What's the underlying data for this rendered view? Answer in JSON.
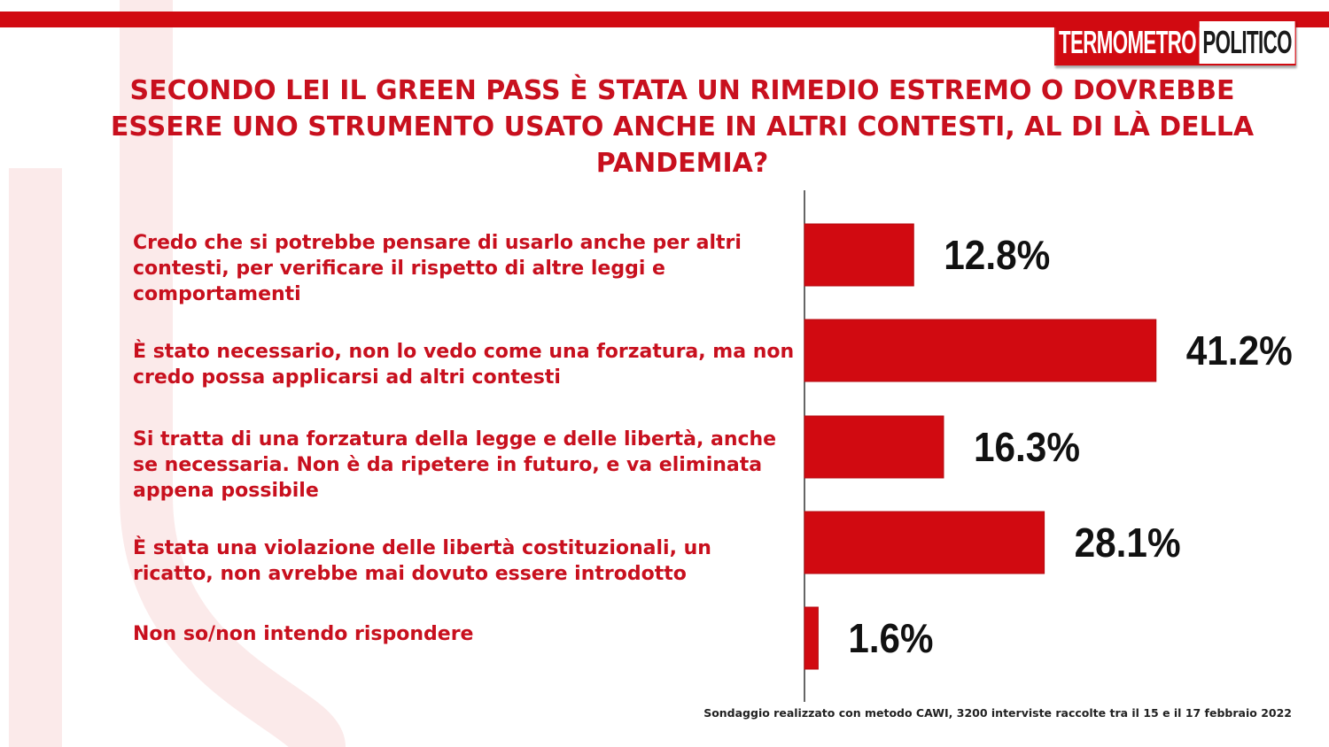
{
  "logo": {
    "part1": "TERMOMETRO",
    "part2": "POLITICO"
  },
  "title": "SECONDO LEI IL GREEN PASS È STATA UN RIMEDIO ESTREMO O DOVREBBE ESSERE UNO STRUMENTO USATO ANCHE IN ALTRI CONTESTI, AL DI LÀ DELLA PANDEMIA?",
  "footnote": "Sondaggio realizzato con metodo CAWI, 3200 interviste raccolte tra il 15 e il 17 febbraio 2022",
  "colors": {
    "accent": "#d10a11",
    "text": "#c8101e"
  },
  "chart_data": {
    "type": "bar",
    "orientation": "horizontal",
    "categories": [
      "Credo che si potrebbe pensare di usarlo anche per altri contesti, per verificare il rispetto di altre leggi e comportamenti",
      "È stato necessario, non lo vedo come una forzatura, ma non credo possa applicarsi ad altri contesti",
      "Si tratta di una forzatura della legge e delle libertà, anche se necessaria. Non è da ripetere in futuro, e va eliminata appena possibile",
      "È stata una violazione delle libertà  costituzionali, un ricatto, non avrebbe mai dovuto essere introdotto",
      "Non so/non intendo rispondere"
    ],
    "values": [
      12.8,
      41.2,
      16.3,
      28.1,
      1.6
    ],
    "value_labels": [
      "12.8%",
      "41.2%",
      "16.3%",
      "28.1%",
      "1.6%"
    ],
    "grid": false,
    "legend": "none"
  }
}
